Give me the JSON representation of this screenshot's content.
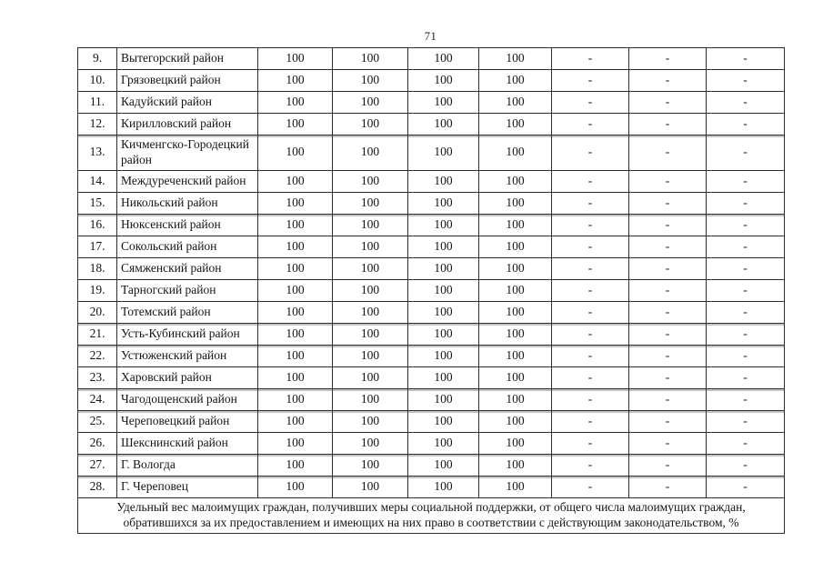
{
  "page": {
    "number": "71"
  },
  "table": {
    "rows": [
      {
        "num": "9.",
        "name": "Вытегорский район",
        "values": [
          "100",
          "100",
          "100",
          "100",
          "-",
          "-",
          "-"
        ]
      },
      {
        "num": "10.",
        "name": "Грязовецкий район",
        "values": [
          "100",
          "100",
          "100",
          "100",
          "-",
          "-",
          "-"
        ]
      },
      {
        "num": "11.",
        "name": "Кадуйский район",
        "values": [
          "100",
          "100",
          "100",
          "100",
          "-",
          "-",
          "-"
        ]
      },
      {
        "num": "12.",
        "name": "Кирилловский район",
        "values": [
          "100",
          "100",
          "100",
          "100",
          "-",
          "-",
          "-"
        ]
      },
      {
        "num": "13.",
        "name": "Кичменгско-Городецкий район",
        "values": [
          "100",
          "100",
          "100",
          "100",
          "-",
          "-",
          "-"
        ]
      },
      {
        "num": "14.",
        "name": "Междуреченский район",
        "values": [
          "100",
          "100",
          "100",
          "100",
          "-",
          "-",
          "-"
        ]
      },
      {
        "num": "15.",
        "name": "Никольский район",
        "values": [
          "100",
          "100",
          "100",
          "100",
          "-",
          "-",
          "-"
        ]
      },
      {
        "num": "16.",
        "name": "Нюксенский район",
        "values": [
          "100",
          "100",
          "100",
          "100",
          "-",
          "-",
          "-"
        ]
      },
      {
        "num": "17.",
        "name": "Сокольский район",
        "values": [
          "100",
          "100",
          "100",
          "100",
          "-",
          "-",
          "-"
        ]
      },
      {
        "num": "18.",
        "name": "Сямженский район",
        "values": [
          "100",
          "100",
          "100",
          "100",
          "-",
          "-",
          "-"
        ]
      },
      {
        "num": "19.",
        "name": "Тарногский район",
        "values": [
          "100",
          "100",
          "100",
          "100",
          "-",
          "-",
          "-"
        ]
      },
      {
        "num": "20.",
        "name": "Тотемский район",
        "values": [
          "100",
          "100",
          "100",
          "100",
          "-",
          "-",
          "-"
        ]
      },
      {
        "num": "21.",
        "name": "Усть-Кубинский район",
        "values": [
          "100",
          "100",
          "100",
          "100",
          "-",
          "-",
          "-"
        ]
      },
      {
        "num": "22.",
        "name": "Устюженский район",
        "values": [
          "100",
          "100",
          "100",
          "100",
          "-",
          "-",
          "-"
        ]
      },
      {
        "num": "23.",
        "name": "Харовский район",
        "values": [
          "100",
          "100",
          "100",
          "100",
          "-",
          "-",
          "-"
        ]
      },
      {
        "num": "24.",
        "name": "Чагодощенский район",
        "values": [
          "100",
          "100",
          "100",
          "100",
          "-",
          "-",
          "-"
        ]
      },
      {
        "num": "25.",
        "name": "Череповецкий район",
        "values": [
          "100",
          "100",
          "100",
          "100",
          "-",
          "-",
          "-"
        ]
      },
      {
        "num": "26.",
        "name": "Шекснинский район",
        "values": [
          "100",
          "100",
          "100",
          "100",
          "-",
          "-",
          "-"
        ]
      },
      {
        "num": "27.",
        "name": "Г. Вологда",
        "values": [
          "100",
          "100",
          "100",
          "100",
          "-",
          "-",
          "-"
        ]
      },
      {
        "num": "28.",
        "name": "Г. Череповец",
        "values": [
          "100",
          "100",
          "100",
          "100",
          "-",
          "-",
          "-"
        ]
      }
    ],
    "footer": "Удельный вес малоимущих граждан, получивших меры социальной поддержки, от общего числа малоимущих граждан, обратившихся за их предоставлением и имеющих на них право в соответствии с действующим законодательством, %"
  }
}
